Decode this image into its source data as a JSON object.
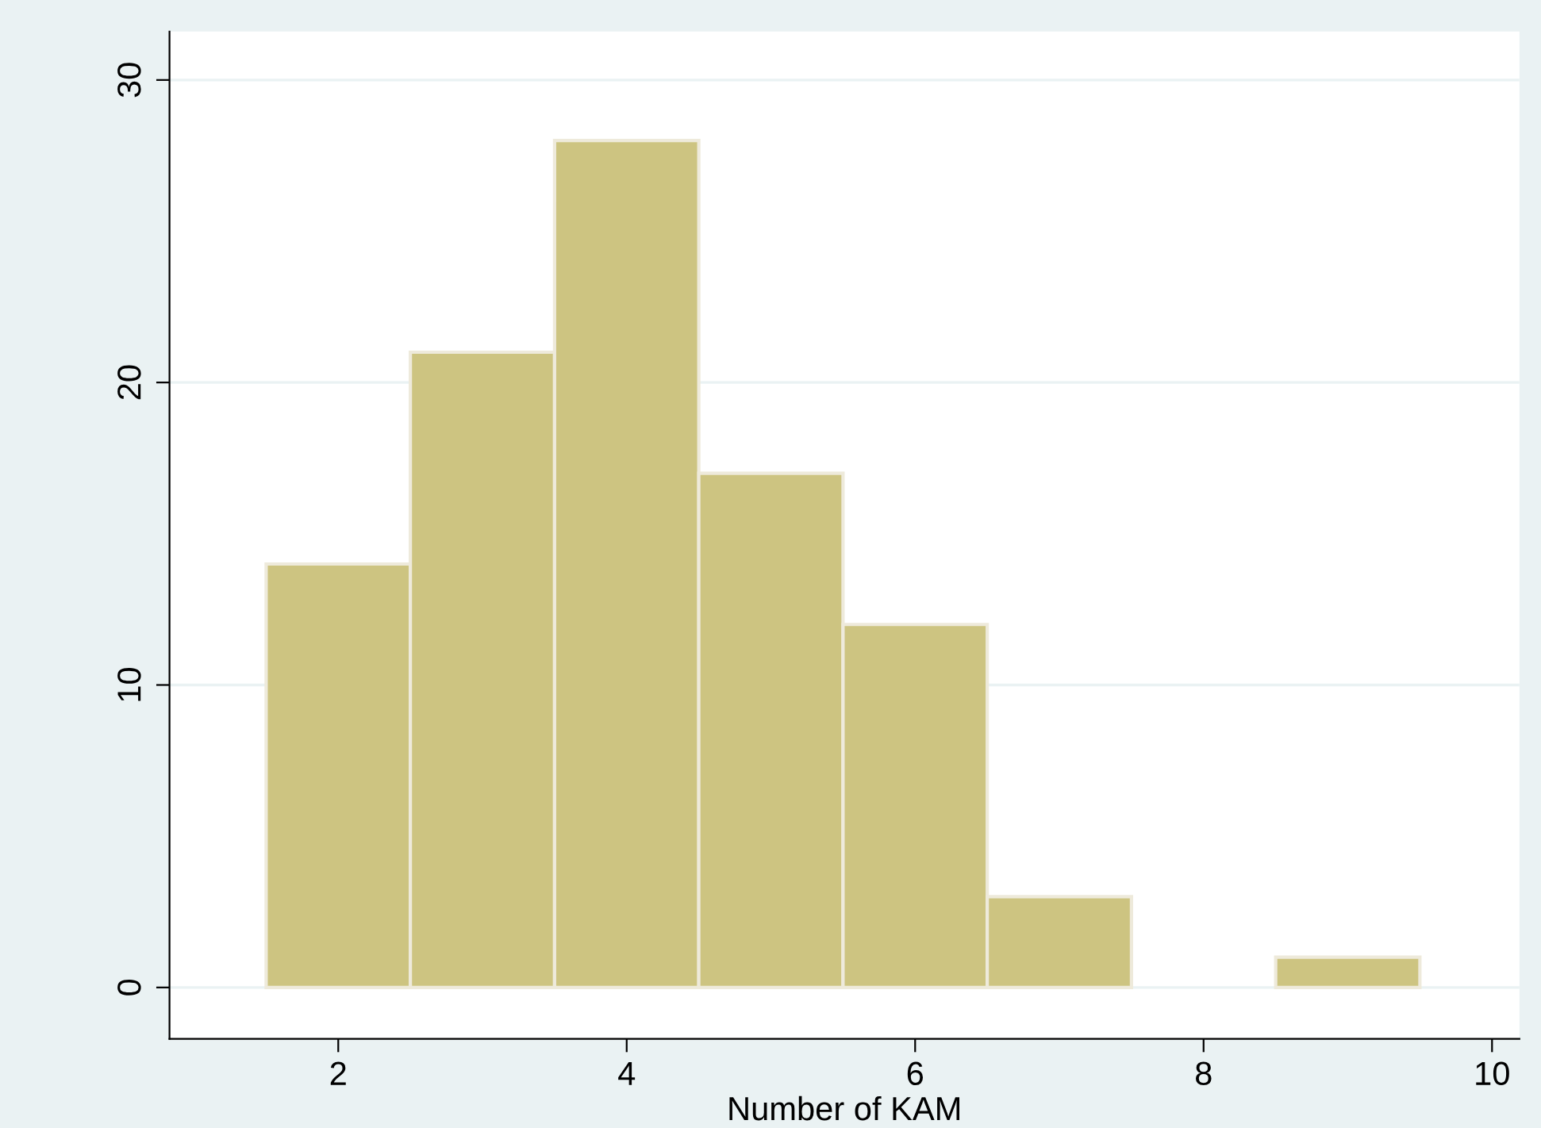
{
  "chart_data": {
    "type": "histogram",
    "xlabel": "Number of KAM",
    "bins": [
      1.5,
      2.5,
      3.5,
      4.5,
      5.5,
      6.5,
      7.5,
      8.5,
      9.5
    ],
    "values": [
      14,
      21,
      28,
      17,
      12,
      3,
      0,
      1
    ],
    "color": "#cdc481",
    "xlim": [
      0.83,
      10.19
    ],
    "xticks": [
      2,
      4,
      6,
      8,
      10
    ],
    "ylim": [
      -1.7,
      31.6
    ],
    "yticks": [
      0,
      10,
      20,
      30
    ],
    "grid": "y"
  }
}
